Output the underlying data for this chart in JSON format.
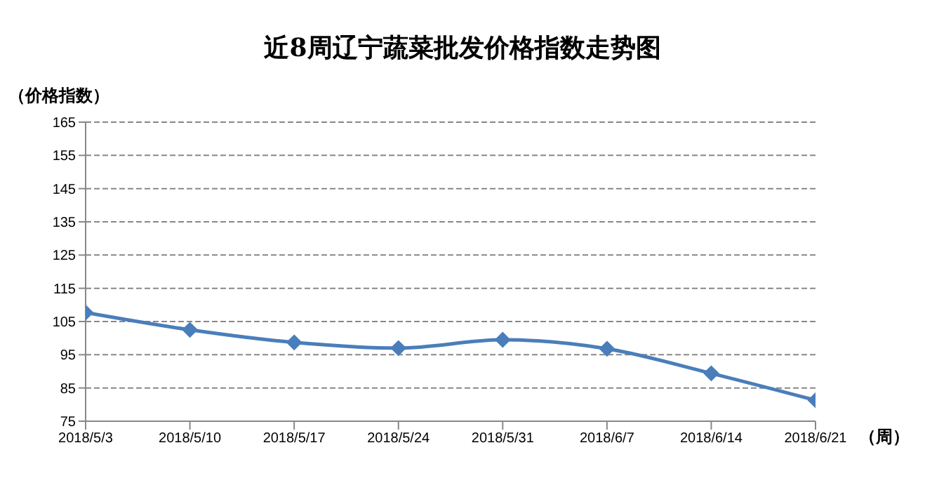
{
  "chart_data": {
    "type": "line",
    "title": "近8周辽宁蔬菜批发价格指数走势图",
    "ylabel": "（价格指数）",
    "xlabel": "（周）",
    "categories": [
      "2018/5/3",
      "2018/5/10",
      "2018/5/17",
      "2018/5/24",
      "2018/5/31",
      "2018/6/7",
      "2018/6/14",
      "2018/6/21"
    ],
    "series": [
      {
        "color": "#4a7ebb",
        "values": [
          107.7,
          102.5,
          98.7,
          97,
          99.5,
          96.8,
          89.4,
          81.3
        ]
      }
    ],
    "ylim": [
      75,
      165
    ],
    "yticks": [
      75,
      85,
      95,
      105,
      115,
      125,
      135,
      145,
      155,
      165
    ],
    "grid": "y",
    "marker": "diamond",
    "line_style": "solid"
  }
}
